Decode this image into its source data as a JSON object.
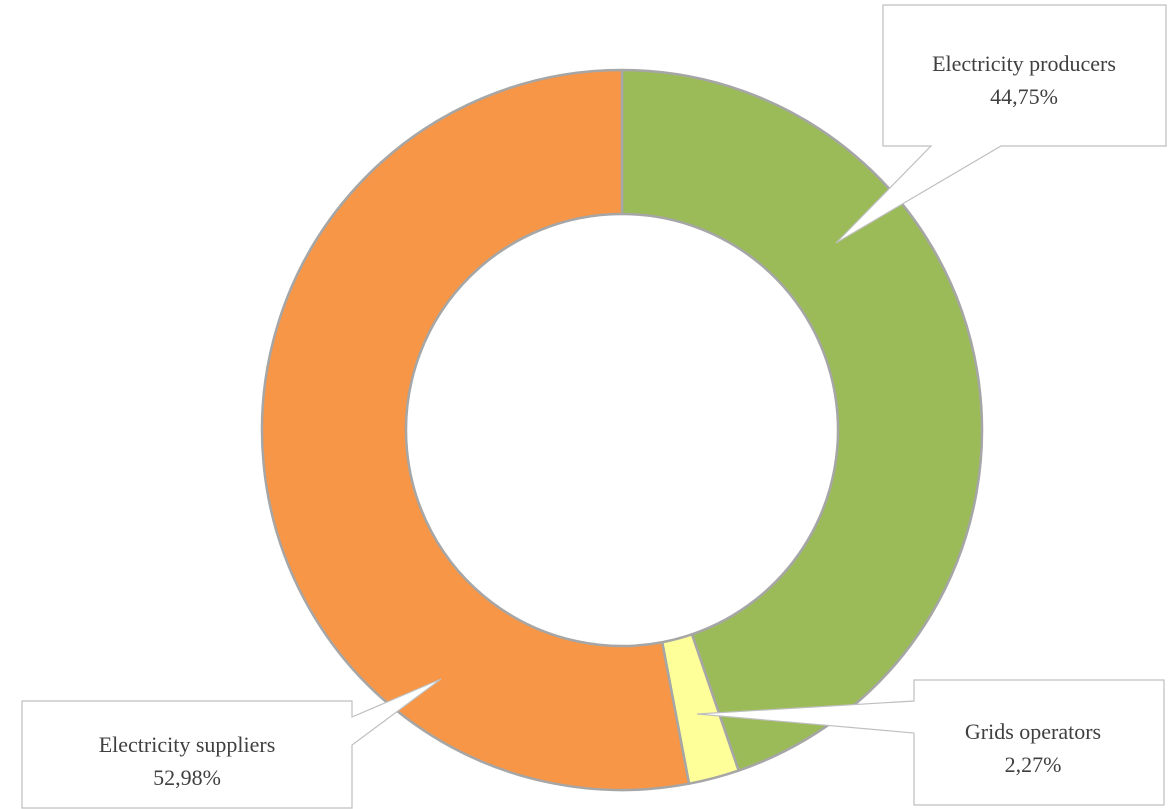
{
  "chart_data": {
    "type": "pie",
    "variant": "doughnut",
    "categories": [
      "Electricity producers",
      "Grids operators",
      "Electricity suppliers"
    ],
    "values": [
      44.75,
      2.27,
      52.98
    ],
    "value_labels": [
      "44,75%",
      "2,27%",
      "52,98%"
    ],
    "colors": [
      "#9BBB59",
      "#FFFF99",
      "#F79646"
    ],
    "border_color": "#A6A6A6",
    "start_angle_deg": 0,
    "direction": "clockwise",
    "legend": "none"
  }
}
